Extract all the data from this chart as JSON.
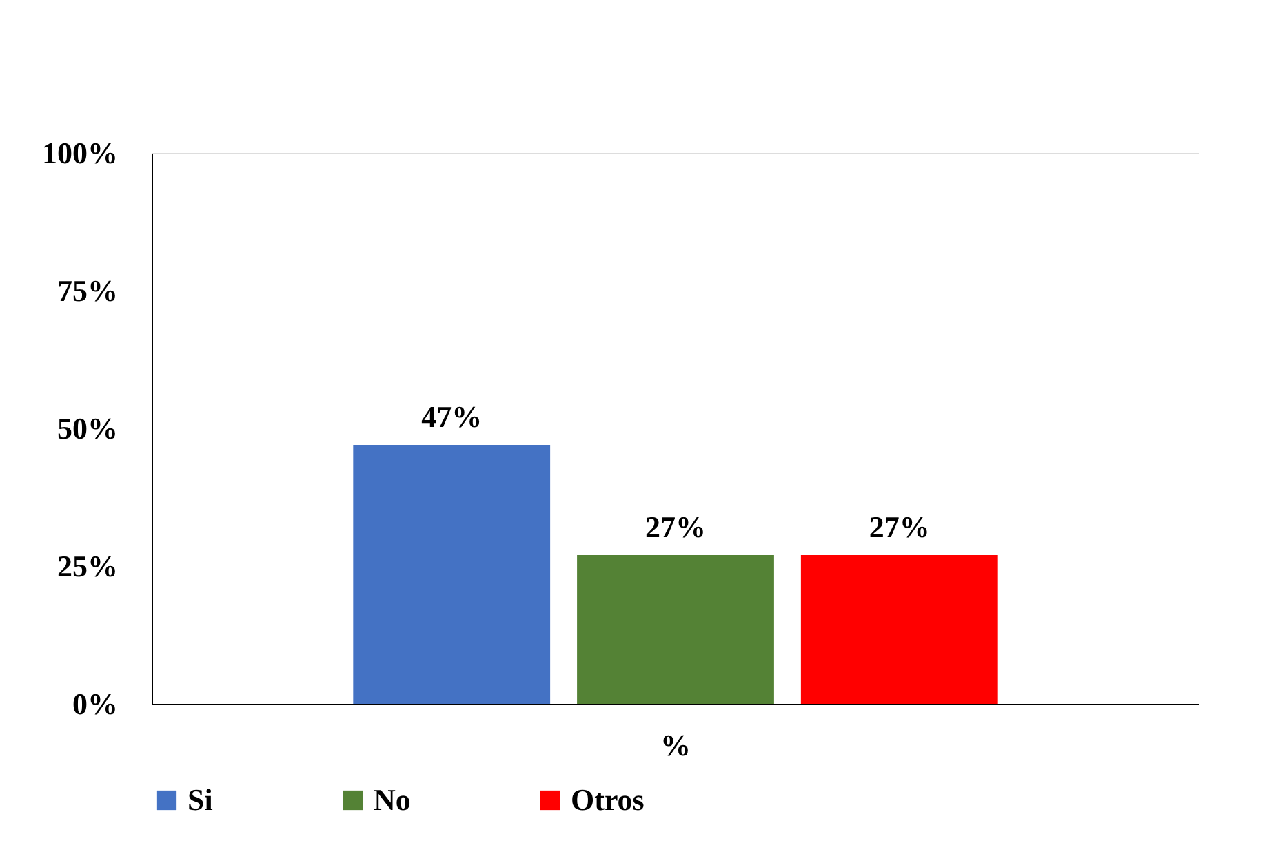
{
  "chart_data": {
    "type": "bar",
    "categories": [
      "%"
    ],
    "series": [
      {
        "name": "Si",
        "color": "#4472c4",
        "values": [
          47
        ],
        "value_labels": [
          "47%"
        ]
      },
      {
        "name": "No",
        "color": "#548235",
        "values": [
          27
        ],
        "value_labels": [
          "27%"
        ]
      },
      {
        "name": "Otros",
        "color": "#ff0000",
        "values": [
          27
        ],
        "value_labels": [
          "27%"
        ]
      }
    ],
    "ylim": [
      0,
      100
    ],
    "yticks": [
      {
        "value": 0,
        "label": "0%"
      },
      {
        "value": 25,
        "label": "25%"
      },
      {
        "value": 50,
        "label": "50%"
      },
      {
        "value": 75,
        "label": "75%"
      },
      {
        "value": 100,
        "label": "100%"
      }
    ],
    "grid": false,
    "legend": "bottom"
  }
}
